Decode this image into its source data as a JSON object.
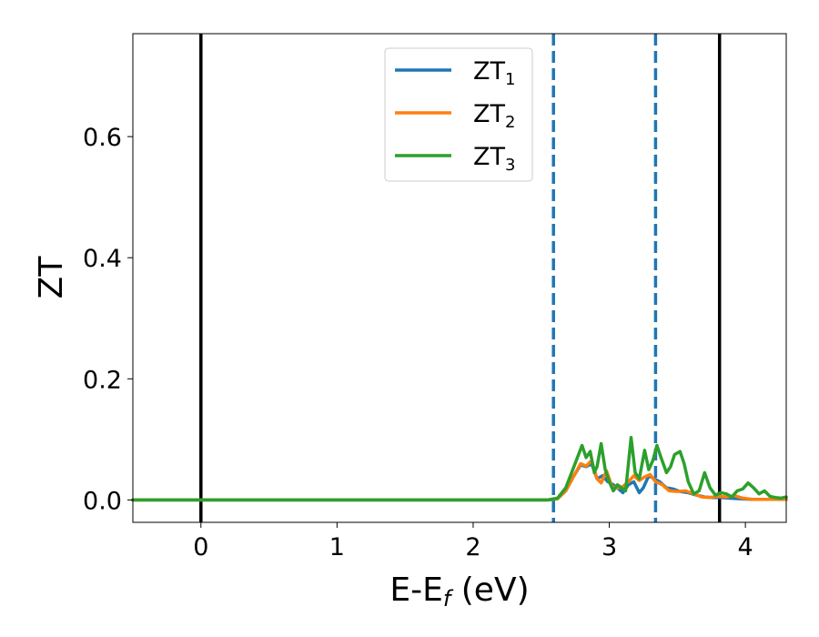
{
  "chart_data": {
    "type": "line",
    "xlabel_main": "E-E",
    "xlabel_sub": "f",
    "xlabel_unit": " (eV)",
    "ylabel": "ZT",
    "xlim": [
      -0.5,
      4.3
    ],
    "ylim": [
      -0.037,
      0.77
    ],
    "x_ticks": [
      0,
      1,
      2,
      3,
      4
    ],
    "x_tick_labels": [
      "0",
      "1",
      "2",
      "3",
      "4"
    ],
    "y_ticks": [
      0.0,
      0.2,
      0.4,
      0.6
    ],
    "y_tick_labels": [
      "0.0",
      "0.2",
      "0.4",
      "0.6"
    ],
    "grid": false,
    "legend_position": "top-center",
    "vertical_lines": [
      {
        "x": 0.0,
        "style": "solid",
        "color": "#000000"
      },
      {
        "x": 3.81,
        "style": "solid",
        "color": "#000000"
      },
      {
        "x": 2.59,
        "style": "dashed",
        "color": "#1f77b4"
      },
      {
        "x": 3.34,
        "style": "dashed",
        "color": "#1f77b4"
      }
    ],
    "series": [
      {
        "name_main": "ZT",
        "name_sub": "1",
        "color": "#1f77b4",
        "points": [
          [
            -0.5,
            0
          ],
          [
            2.55,
            0
          ],
          [
            2.62,
            0.002
          ],
          [
            2.68,
            0.015
          ],
          [
            2.74,
            0.04
          ],
          [
            2.79,
            0.058
          ],
          [
            2.83,
            0.055
          ],
          [
            2.87,
            0.06
          ],
          [
            2.91,
            0.035
          ],
          [
            2.95,
            0.04
          ],
          [
            2.99,
            0.03
          ],
          [
            3.03,
            0.025
          ],
          [
            3.07,
            0.018
          ],
          [
            3.1,
            0.012
          ],
          [
            3.14,
            0.025
          ],
          [
            3.18,
            0.03
          ],
          [
            3.22,
            0.012
          ],
          [
            3.25,
            0.02
          ],
          [
            3.29,
            0.04
          ],
          [
            3.33,
            0.035
          ],
          [
            3.37,
            0.03
          ],
          [
            3.42,
            0.02
          ],
          [
            3.47,
            0.018
          ],
          [
            3.52,
            0.014
          ],
          [
            3.58,
            0.012
          ],
          [
            3.64,
            0.008
          ],
          [
            3.7,
            0.005
          ],
          [
            3.76,
            0.004
          ],
          [
            3.82,
            0.004
          ],
          [
            3.88,
            0.003
          ],
          [
            3.95,
            0.002
          ],
          [
            4.05,
            0.001
          ],
          [
            4.3,
            0.001
          ]
        ]
      },
      {
        "name_main": "ZT",
        "name_sub": "2",
        "color": "#ff7f0e",
        "points": [
          [
            -0.5,
            0
          ],
          [
            2.55,
            0
          ],
          [
            2.62,
            0.002
          ],
          [
            2.68,
            0.015
          ],
          [
            2.74,
            0.04
          ],
          [
            2.79,
            0.06
          ],
          [
            2.83,
            0.056
          ],
          [
            2.87,
            0.065
          ],
          [
            2.91,
            0.035
          ],
          [
            2.94,
            0.028
          ],
          [
            2.98,
            0.048
          ],
          [
            3.02,
            0.022
          ],
          [
            3.06,
            0.02
          ],
          [
            3.1,
            0.022
          ],
          [
            3.14,
            0.03
          ],
          [
            3.18,
            0.04
          ],
          [
            3.22,
            0.032
          ],
          [
            3.26,
            0.038
          ],
          [
            3.3,
            0.042
          ],
          [
            3.34,
            0.03
          ],
          [
            3.39,
            0.025
          ],
          [
            3.44,
            0.015
          ],
          [
            3.5,
            0.014
          ],
          [
            3.56,
            0.015
          ],
          [
            3.62,
            0.01
          ],
          [
            3.68,
            0.005
          ],
          [
            3.74,
            0.004
          ],
          [
            3.8,
            0.006
          ],
          [
            3.86,
            0.005
          ],
          [
            3.92,
            0.007
          ],
          [
            3.98,
            0.003
          ],
          [
            4.05,
            0.001
          ],
          [
            4.15,
            0.001
          ],
          [
            4.3,
            0.001
          ]
        ]
      },
      {
        "name_main": "ZT",
        "name_sub": "3",
        "color": "#2ca02c",
        "points": [
          [
            -0.5,
            0
          ],
          [
            2.55,
            0
          ],
          [
            2.62,
            0.003
          ],
          [
            2.68,
            0.02
          ],
          [
            2.74,
            0.055
          ],
          [
            2.8,
            0.09
          ],
          [
            2.83,
            0.07
          ],
          [
            2.86,
            0.08
          ],
          [
            2.89,
            0.045
          ],
          [
            2.91,
            0.055
          ],
          [
            2.94,
            0.093
          ],
          [
            2.97,
            0.05
          ],
          [
            3.0,
            0.03
          ],
          [
            3.03,
            0.015
          ],
          [
            3.06,
            0.025
          ],
          [
            3.09,
            0.02
          ],
          [
            3.12,
            0.015
          ],
          [
            3.16,
            0.103
          ],
          [
            3.19,
            0.045
          ],
          [
            3.22,
            0.035
          ],
          [
            3.26,
            0.082
          ],
          [
            3.29,
            0.05
          ],
          [
            3.32,
            0.065
          ],
          [
            3.35,
            0.09
          ],
          [
            3.38,
            0.07
          ],
          [
            3.42,
            0.045
          ],
          [
            3.45,
            0.055
          ],
          [
            3.48,
            0.075
          ],
          [
            3.52,
            0.08
          ],
          [
            3.55,
            0.06
          ],
          [
            3.58,
            0.03
          ],
          [
            3.62,
            0.01
          ],
          [
            3.66,
            0.015
          ],
          [
            3.7,
            0.045
          ],
          [
            3.74,
            0.02
          ],
          [
            3.78,
            0.008
          ],
          [
            3.82,
            0.012
          ],
          [
            3.86,
            0.01
          ],
          [
            3.9,
            0.005
          ],
          [
            3.94,
            0.015
          ],
          [
            3.98,
            0.018
          ],
          [
            4.02,
            0.028
          ],
          [
            4.06,
            0.02
          ],
          [
            4.1,
            0.01
          ],
          [
            4.14,
            0.015
          ],
          [
            4.18,
            0.006
          ],
          [
            4.22,
            0.004
          ],
          [
            4.26,
            0.003
          ],
          [
            4.3,
            0.005
          ]
        ]
      }
    ]
  }
}
